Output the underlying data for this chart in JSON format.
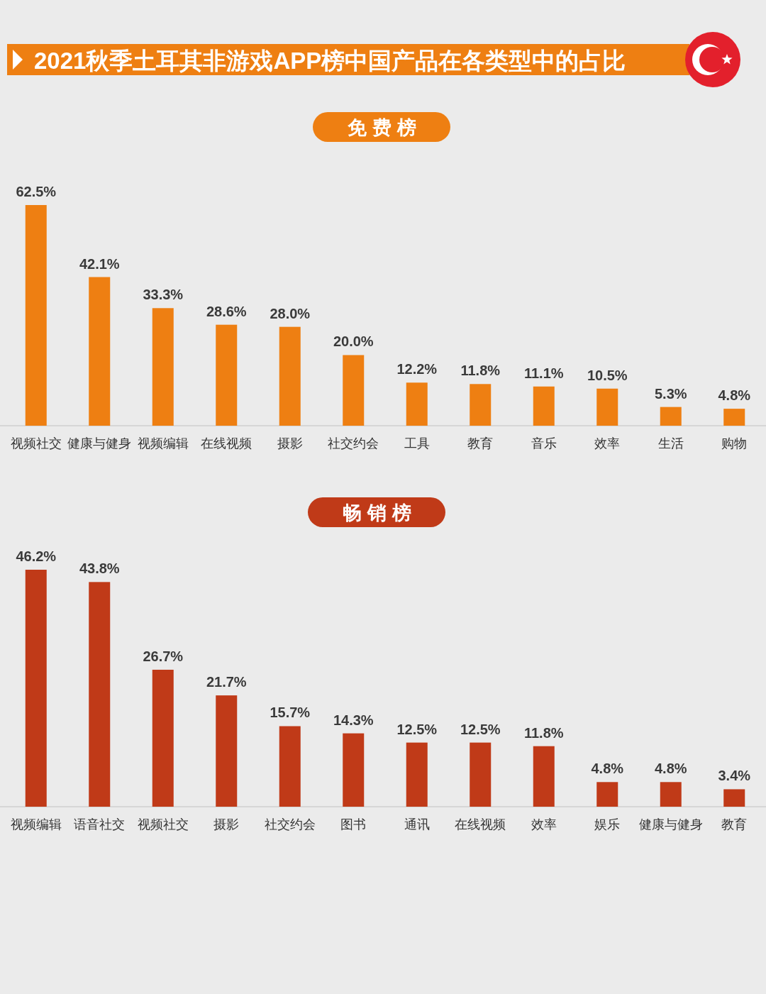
{
  "chart_data": [
    {
      "type": "bar",
      "title": "2021秋季土耳其非游戏APP榜中国产品在各类型中的占比",
      "subtitle": "免费榜",
      "categories": [
        "视频社交",
        "健康与健身",
        "视频编辑",
        "在线视频",
        "摄影",
        "社交约会",
        "工具",
        "教育",
        "音乐",
        "效率",
        "生活",
        "购物"
      ],
      "values": [
        62.5,
        42.1,
        33.3,
        28.6,
        28.0,
        20.0,
        12.2,
        11.8,
        11.1,
        10.5,
        5.3,
        4.8
      ],
      "value_labels": [
        "62.5%",
        "42.1%",
        "33.3%",
        "28.6%",
        "28.0%",
        "20.0%",
        "12.2%",
        "11.8%",
        "11.1%",
        "10.5%",
        "5.3%",
        "4.8%"
      ],
      "color": "#ee7f12"
    },
    {
      "type": "bar",
      "title": "畅销榜",
      "categories": [
        "视频编辑",
        "语音社交",
        "视频社交",
        "摄影",
        "社交约会",
        "图书",
        "通讯",
        "在线视频",
        "效率",
        "娱乐",
        "健康与健身",
        "教育"
      ],
      "values": [
        46.2,
        43.8,
        26.7,
        21.7,
        15.7,
        14.3,
        12.5,
        12.5,
        11.8,
        4.8,
        4.8,
        3.4
      ],
      "value_labels": [
        "46.2%",
        "43.8%",
        "26.7%",
        "21.7%",
        "15.7%",
        "14.3%",
        "12.5%",
        "12.5%",
        "11.8%",
        "4.8%",
        "4.8%",
        "3.4%"
      ],
      "color": "#c03a18"
    }
  ]
}
